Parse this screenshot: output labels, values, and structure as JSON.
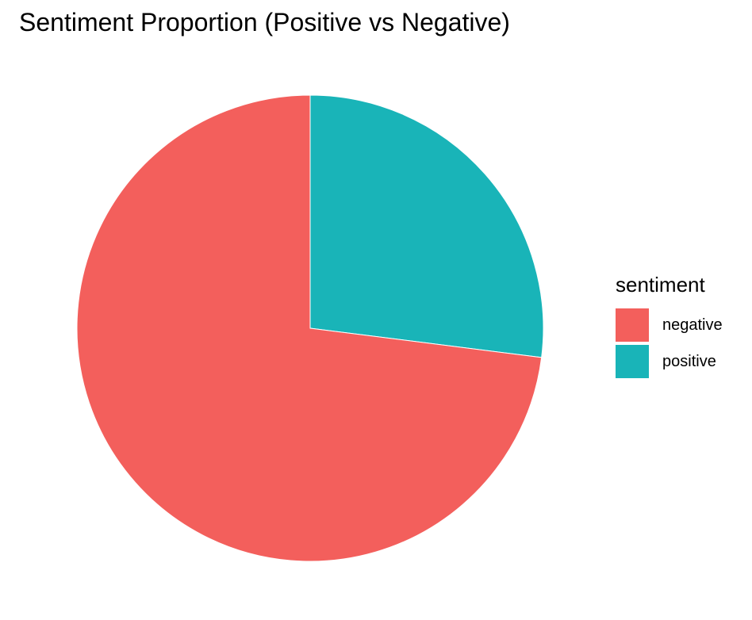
{
  "chart_data": {
    "type": "pie",
    "title": "Sentiment Proportion (Positive vs Negative)",
    "legend_title": "sentiment",
    "legend_position": "right",
    "start_angle": "12 o'clock",
    "direction": "clockwise",
    "categories": [
      "positive",
      "negative"
    ],
    "values": [
      0.27,
      0.73
    ],
    "colors": [
      "#19B4B8",
      "#F35F5C"
    ],
    "legend_order": [
      "negative",
      "positive"
    ]
  }
}
